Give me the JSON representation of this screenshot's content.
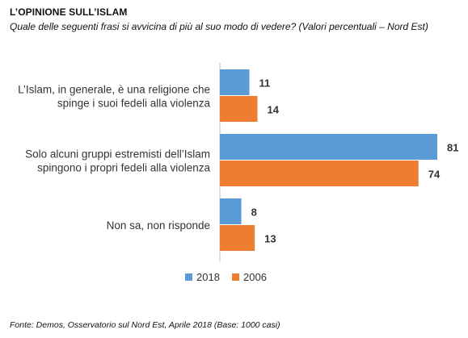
{
  "header": {
    "title": "L’OPINIONE  SULL’ISLAM",
    "subtitle": "Quale delle seguenti frasi si avvicina di più al suo modo di vedere? (Valori percentuali – Nord Est)"
  },
  "footer": {
    "source": "Fonte: Demos, Osservatorio sul Nord Est, Aprile  2018 (Base: 1000 casi)"
  },
  "chart_data": {
    "type": "bar",
    "orientation": "horizontal",
    "categories": [
      [
        "L’Islam, in generale, è una religione che",
        "spinge i suoi fedeli alla violenza"
      ],
      [
        "Solo alcuni gruppi estremisti dell’Islam",
        "spingono i propri fedeli alla violenza"
      ],
      [
        "Non sa, non risponde"
      ]
    ],
    "series": [
      {
        "name": "2018",
        "color": "#5B9BD5",
        "values": [
          11,
          81,
          8
        ]
      },
      {
        "name": "2006",
        "color": "#ED7D31",
        "values": [
          14,
          74,
          13
        ]
      }
    ],
    "xlim": [
      0,
      85
    ],
    "grid": false,
    "legend_position": "bottom"
  }
}
